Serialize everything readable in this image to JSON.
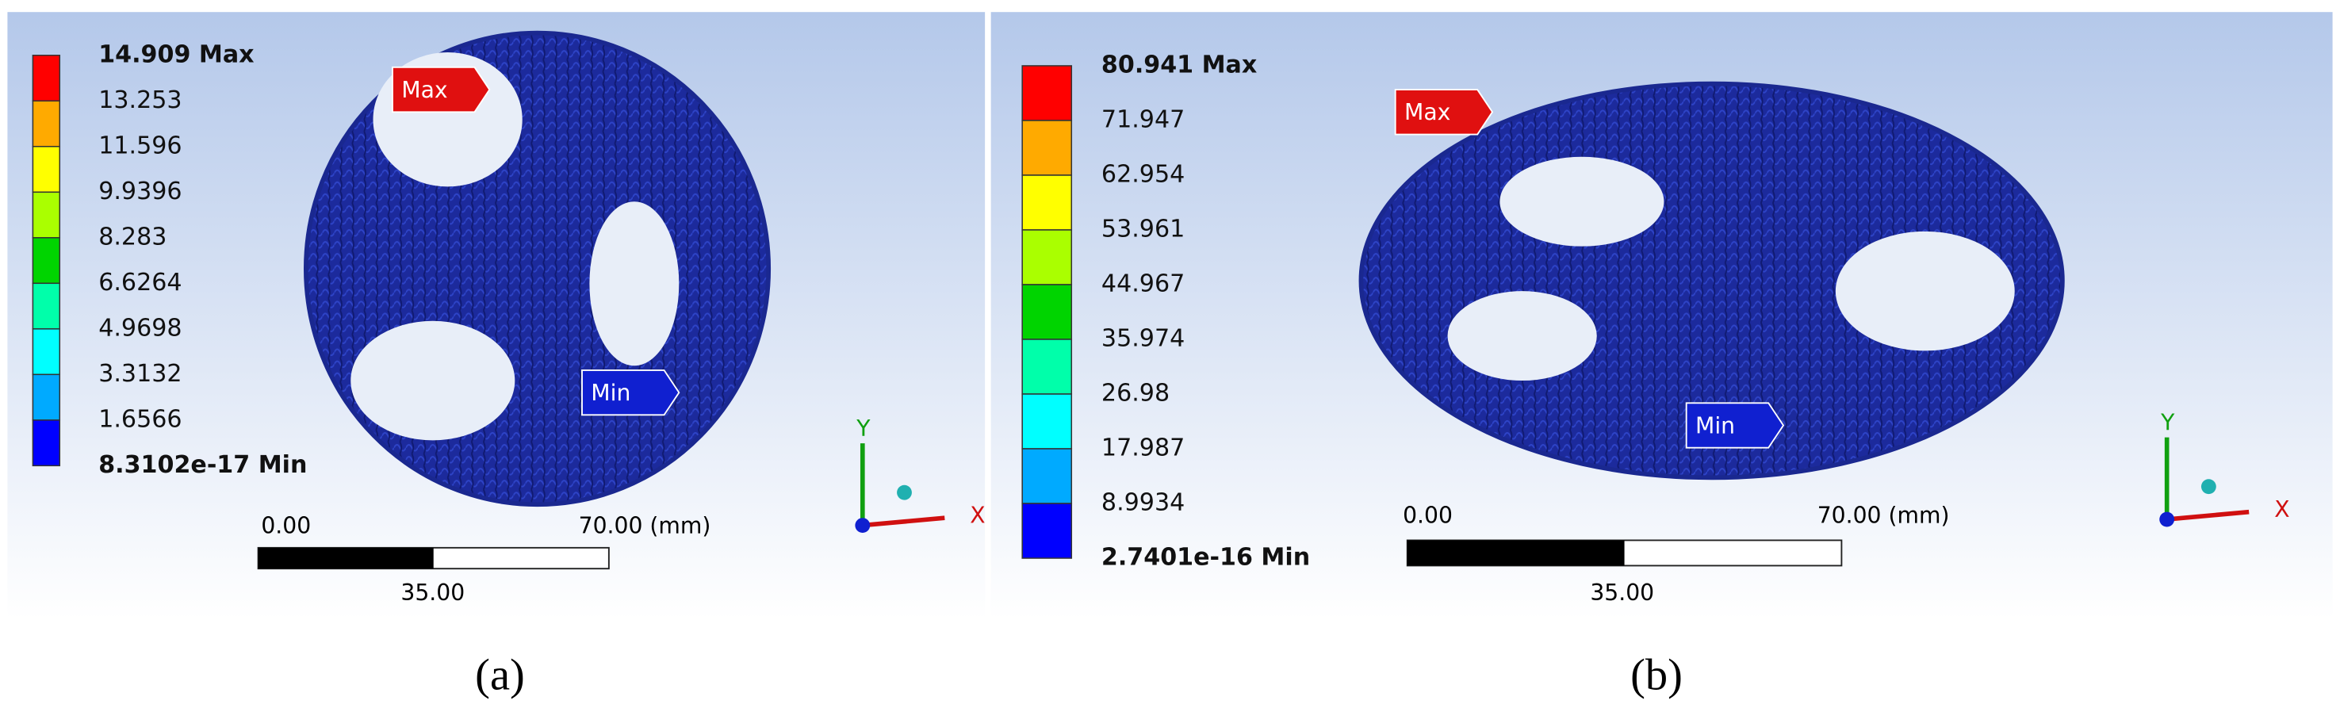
{
  "panels": [
    {
      "legend": [
        "14.909 Max",
        "13.253",
        "11.596",
        "9.9396",
        "8.283",
        "6.6264",
        "4.9698",
        "3.3132",
        "1.6566",
        "8.3102e-17 Min"
      ],
      "max_tag": "Max",
      "min_tag": "Min",
      "scale": {
        "start": "0.00",
        "end": "70.00 (mm)",
        "mid": "35.00"
      },
      "axes": {
        "x": "X",
        "y": "Y"
      },
      "caption": "(a)"
    },
    {
      "legend": [
        "80.941 Max",
        "71.947",
        "62.954",
        "53.961",
        "44.967",
        "35.974",
        "26.98",
        "17.987",
        "8.9934",
        "2.7401e-16 Min"
      ],
      "max_tag": "Max",
      "min_tag": "Min",
      "scale": {
        "start": "0.00",
        "end": "70.00 (mm)",
        "mid": "35.00"
      },
      "axes": {
        "x": "X",
        "y": "Y"
      },
      "caption": "(b)"
    }
  ]
}
